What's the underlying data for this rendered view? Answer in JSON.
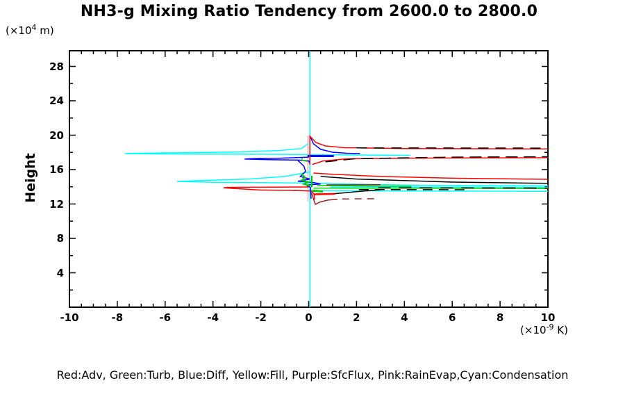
{
  "chart_data": {
    "type": "line",
    "title": "NH3-g Mixing Ratio Tendency from 2600.0 to 2800.0",
    "legend_note": "Red:Adv, Green:Turb, Blue:Diff, Yellow:Fill, Purple:SfcFlux, Pink:RainEvap,Cyan:Condensation",
    "x_axis": {
      "min": -10,
      "max": 10,
      "major_step": 2,
      "minor_step": 0.5,
      "ticks": [
        -10,
        -8,
        -6,
        -4,
        -2,
        0,
        2,
        4,
        6,
        8,
        10
      ],
      "unit": {
        "prefix": "(×10",
        "exp": "-9",
        "suffix": " K)"
      }
    },
    "y_axis": {
      "min": 0,
      "max": 29.82,
      "major_step": 4,
      "minor_step": 2,
      "ticks": [
        4,
        8,
        12,
        16,
        20,
        24,
        28
      ],
      "title": "Height",
      "unit": {
        "prefix": "(×10",
        "exp": "4",
        "suffix": " m)"
      }
    },
    "colors": {
      "adv": "#ff0000",
      "turb": "#00cc00",
      "diff": "#0000ff",
      "fill": "#ffff00",
      "sfcflux": "#aa00aa",
      "rainevap": "#ffaaaa",
      "condensation": "#00ffff",
      "total": "#000000",
      "dark_red": "#992222"
    },
    "series": [
      {
        "name": "condensation-zero-line",
        "color": "#00ffff",
        "points": [
          [
            0.05,
            0
          ],
          [
            0.05,
            29.8
          ]
        ]
      },
      {
        "name": "rainevap-zero-line",
        "color": "#ffaaaa",
        "points": [
          [
            -0.03,
            12.3
          ],
          [
            -0.03,
            19.95
          ]
        ]
      },
      {
        "name": "condensation-spike-18",
        "color": "#00ffff",
        "points": [
          [
            0.0,
            19.05
          ],
          [
            -0.3,
            18.45
          ],
          [
            -1.2,
            18.22
          ],
          [
            -3.0,
            18.05
          ],
          [
            -5.5,
            17.95
          ],
          [
            -7.3,
            17.9
          ],
          [
            -7.68,
            17.86
          ],
          [
            -6.0,
            17.82
          ],
          [
            -3.0,
            17.79
          ],
          [
            -1.0,
            17.77
          ],
          [
            0.3,
            17.74
          ],
          [
            2.0,
            17.7
          ],
          [
            4.25,
            17.66
          ]
        ]
      },
      {
        "name": "diff-top-curve",
        "color": "#0000ff",
        "points": [
          [
            0.07,
            19.8
          ],
          [
            0.2,
            19.0
          ],
          [
            0.5,
            18.35
          ],
          [
            1.0,
            18.02
          ],
          [
            1.6,
            17.9
          ],
          [
            2.15,
            17.86
          ]
        ]
      },
      {
        "name": "diff-thick-segment",
        "color": "#0000ff",
        "width": 3,
        "points": [
          [
            -0.05,
            17.58
          ],
          [
            1.05,
            17.58
          ]
        ]
      },
      {
        "name": "adv-top-curve",
        "color": "#ff0000",
        "points": [
          [
            0.05,
            16.55
          ],
          [
            0.05,
            19.9
          ],
          [
            0.3,
            19.15
          ],
          [
            0.7,
            18.75
          ],
          [
            1.5,
            18.55
          ],
          [
            4.0,
            18.45
          ],
          [
            10,
            18.4
          ]
        ]
      },
      {
        "name": "total-top-dashed",
        "color": "#000000",
        "dash": "15,10",
        "points": [
          [
            2.0,
            18.52
          ],
          [
            10,
            18.5
          ]
        ]
      },
      {
        "name": "adv-17-curve",
        "color": "#ff0000",
        "points": [
          [
            0.15,
            16.6
          ],
          [
            0.6,
            17.0
          ],
          [
            1.6,
            17.25
          ],
          [
            4.0,
            17.33
          ],
          [
            10,
            17.38
          ]
        ]
      },
      {
        "name": "total-17-dashed",
        "color": "#000000",
        "dash": "17,9",
        "points": [
          [
            0.7,
            16.9
          ],
          [
            2.0,
            17.28
          ],
          [
            6.0,
            17.45
          ],
          [
            10,
            17.5
          ]
        ]
      },
      {
        "name": "diff-hairpin-17",
        "color": "#0000ff",
        "points": [
          [
            0.0,
            17.45
          ],
          [
            -1.2,
            17.33
          ],
          [
            -2.4,
            17.28
          ],
          [
            -2.68,
            17.22
          ],
          [
            -1.5,
            17.14
          ],
          [
            -0.4,
            17.1
          ],
          [
            0.0,
            17.0
          ],
          [
            0.05,
            16.75
          ]
        ]
      },
      {
        "name": "adv-15-curve",
        "color": "#ff0000",
        "points": [
          [
            0.2,
            15.6
          ],
          [
            1.0,
            15.45
          ],
          [
            3.0,
            15.2
          ],
          [
            6.0,
            15.0
          ],
          [
            10,
            14.87
          ]
        ]
      },
      {
        "name": "total-15-curve",
        "color": "#000000",
        "points": [
          [
            0.5,
            15.2
          ],
          [
            2.0,
            14.9
          ],
          [
            6.0,
            14.55
          ],
          [
            10,
            14.4
          ]
        ]
      },
      {
        "name": "condensation-spike-15",
        "color": "#00ffff",
        "points": [
          [
            0.05,
            15.72
          ],
          [
            -1.0,
            15.2
          ],
          [
            -2.5,
            14.9
          ],
          [
            -4.3,
            14.75
          ],
          [
            -5.5,
            14.63
          ],
          [
            -4.0,
            14.52
          ],
          [
            -2.0,
            14.48
          ],
          [
            -0.5,
            14.45
          ],
          [
            0.3,
            14.42
          ],
          [
            4.0,
            14.2
          ],
          [
            10,
            14.1
          ]
        ]
      },
      {
        "name": "condensation-right-14",
        "color": "#00ffff",
        "points": [
          [
            0.9,
            13.98
          ],
          [
            10,
            13.93
          ]
        ]
      },
      {
        "name": "condensation-right-13-5",
        "color": "#00ffff",
        "points": [
          [
            -0.7,
            13.55
          ],
          [
            10,
            13.47
          ]
        ]
      },
      {
        "name": "turb-right-14",
        "color": "#00cc00",
        "points": [
          [
            0.35,
            14.15
          ],
          [
            4.3,
            14.05
          ]
        ]
      },
      {
        "name": "turb-right-13-8",
        "color": "#00cc00",
        "points": [
          [
            0.2,
            13.85
          ],
          [
            10,
            13.8
          ]
        ]
      },
      {
        "name": "total-13-8-dashed",
        "color": "#000000",
        "dash": "18,12",
        "points": [
          [
            2.9,
            13.88
          ],
          [
            10,
            13.85
          ]
        ]
      },
      {
        "name": "total-13-7-dashed",
        "color": "#000000",
        "dash": "14,9",
        "points": [
          [
            2.1,
            13.68
          ],
          [
            6.6,
            13.66
          ]
        ]
      },
      {
        "name": "adv-hairpin-14",
        "color": "#ff0000",
        "points": [
          [
            0.0,
            13.98
          ],
          [
            -1.5,
            13.96
          ],
          [
            -3.4,
            13.93
          ],
          [
            -3.56,
            13.88
          ],
          [
            -2.0,
            13.62
          ],
          [
            -0.5,
            13.58
          ],
          [
            0.1,
            13.5
          ],
          [
            0.22,
            13.2
          ],
          [
            0.25,
            12.5
          ]
        ]
      },
      {
        "name": "total-slope-13-5",
        "color": "#000000",
        "points": [
          [
            3.0,
            13.66
          ],
          [
            2.3,
            13.5
          ],
          [
            1.06,
            13.2
          ]
        ]
      },
      {
        "name": "adv-segment-13",
        "color": "#ff0000",
        "width": 2.5,
        "points": [
          [
            0.2,
            13.12
          ],
          [
            1.1,
            13.18
          ]
        ]
      },
      {
        "name": "rainevap-dark-curve",
        "color": "#992222",
        "points": [
          [
            0.12,
            13.3
          ],
          [
            0.2,
            12.6
          ],
          [
            0.28,
            11.95
          ],
          [
            0.45,
            12.2
          ],
          [
            0.8,
            12.45
          ],
          [
            1.2,
            12.55
          ]
        ]
      },
      {
        "name": "rainevap-dark-dashed",
        "color": "#992222",
        "dash": "10,8",
        "points": [
          [
            1.4,
            12.58
          ],
          [
            2.9,
            12.62
          ]
        ]
      },
      {
        "name": "rainevap-segment-14",
        "color": "#992222",
        "points": [
          [
            0.74,
            14.22
          ],
          [
            3.0,
            14.25
          ]
        ]
      },
      {
        "name": "diff-center-wiggle",
        "color": "#0000ff",
        "points": [
          [
            -0.45,
            17.05
          ],
          [
            -0.2,
            16.4
          ],
          [
            -0.13,
            15.8
          ],
          [
            -0.35,
            15.2
          ],
          [
            0.05,
            14.9
          ],
          [
            -0.45,
            14.65
          ],
          [
            0.2,
            14.5
          ],
          [
            0.5,
            14.32
          ],
          [
            -0.1,
            14.2
          ],
          [
            0.08,
            13.9
          ],
          [
            0.1,
            12.6
          ]
        ]
      },
      {
        "name": "turb-wiggle-17",
        "color": "#00cc00",
        "points": [
          [
            -0.28,
            17.35
          ],
          [
            -0.28,
            17.1
          ],
          [
            -0.05,
            16.95
          ]
        ]
      },
      {
        "name": "turb-center-wiggle",
        "color": "#00cc00",
        "width": 2,
        "points": [
          [
            -0.3,
            15.5
          ],
          [
            -0.15,
            15.1
          ],
          [
            -0.3,
            14.75
          ],
          [
            0.0,
            14.55
          ],
          [
            -0.2,
            14.3
          ],
          [
            0.05,
            14.1
          ]
        ]
      },
      {
        "name": "turb-vertical",
        "color": "#00cc00",
        "width": 2,
        "points": [
          [
            0.13,
            15.3
          ],
          [
            0.13,
            13.95
          ]
        ]
      },
      {
        "name": "turb-thick-segment",
        "color": "#00cc00",
        "width": 3,
        "points": [
          [
            0.15,
            13.55
          ],
          [
            0.6,
            13.45
          ]
        ]
      }
    ]
  }
}
